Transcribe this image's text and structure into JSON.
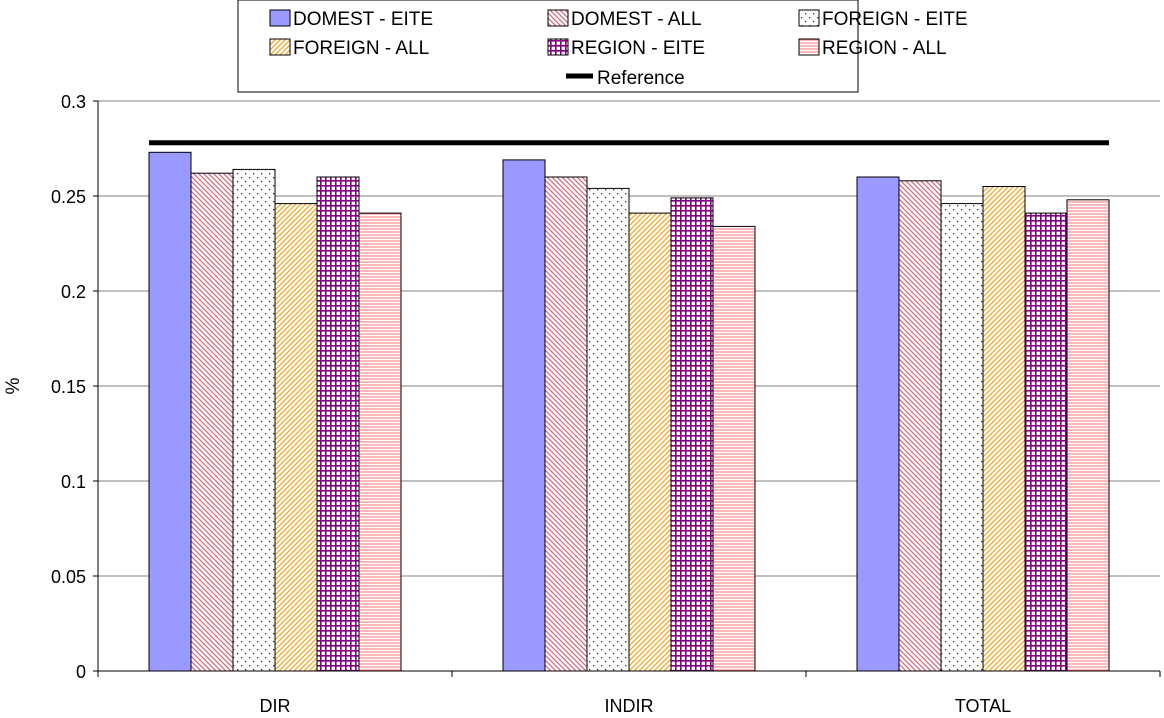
{
  "chart_data": {
    "type": "bar",
    "title": "",
    "xlabel": "",
    "ylabel": "%",
    "ylim": [
      0,
      0.3
    ],
    "yticks": [
      "0",
      "0.05",
      "0.1",
      "0.15",
      "0.2",
      "0.25",
      "0.3"
    ],
    "grid": true,
    "legend_position": "top",
    "categories": [
      "DIR",
      "INDIR",
      "TOTAL"
    ],
    "series": [
      {
        "name": "DOMEST - EITE",
        "values": [
          0.273,
          0.269,
          0.26
        ],
        "color": "#9999ff",
        "pattern": "solid"
      },
      {
        "name": "DOMEST - ALL",
        "values": [
          0.262,
          0.26,
          0.258
        ],
        "color": "#d46a7e",
        "pattern": "diagonal-down"
      },
      {
        "name": "FOREIGN - EITE",
        "values": [
          0.264,
          0.254,
          0.246
        ],
        "color": "#000000",
        "pattern": "dots"
      },
      {
        "name": "FOREIGN - ALL",
        "values": [
          0.246,
          0.241,
          0.255
        ],
        "color": "#f5a623",
        "pattern": "diagonal-up"
      },
      {
        "name": "REGION - EITE",
        "values": [
          0.26,
          0.249,
          0.241
        ],
        "color": "#800080",
        "pattern": "grid"
      },
      {
        "name": "REGION - ALL",
        "values": [
          0.241,
          0.234,
          0.248
        ],
        "color": "#ff7070",
        "pattern": "horizontal"
      }
    ],
    "reference": {
      "name": "Reference",
      "value": 0.278,
      "color": "#000000"
    }
  }
}
